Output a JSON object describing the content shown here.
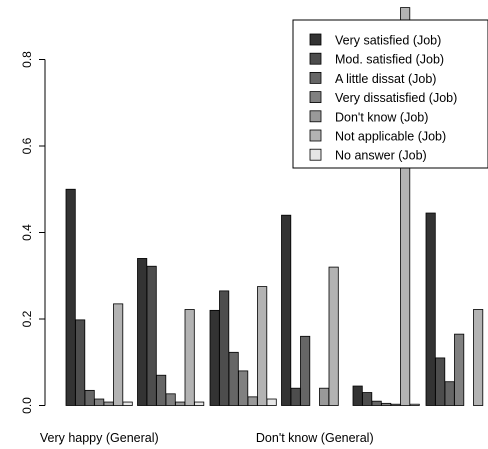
{
  "chart_data": {
    "type": "bar",
    "categories": [
      "Very happy (General)",
      "",
      "",
      "Don't know (General)",
      "",
      ""
    ],
    "series": [
      {
        "name": "Very satisfied (Job)",
        "color": "#333333",
        "values": [
          0.5,
          0.34,
          0.22,
          0.44,
          0.045,
          0.445
        ]
      },
      {
        "name": "Mod. satisfied (Job)",
        "color": "#4d4d4d",
        "values": [
          0.198,
          0.322,
          0.265,
          0.04,
          0.03,
          0.11
        ]
      },
      {
        "name": "A little dissat (Job)",
        "color": "#666666",
        "values": [
          0.035,
          0.07,
          0.123,
          0.16,
          0.01,
          0.055
        ]
      },
      {
        "name": "Very dissatisfied (Job)",
        "color": "#808080",
        "values": [
          0.015,
          0.027,
          0.08,
          0.0,
          0.005,
          0.165
        ]
      },
      {
        "name": "Don't know (Job)",
        "color": "#999999",
        "values": [
          0.008,
          0.008,
          0.02,
          0.04,
          0.003,
          0.0
        ]
      },
      {
        "name": "Not applicable (Job)",
        "color": "#b3b3b3",
        "values": [
          0.235,
          0.222,
          0.275,
          0.32,
          0.92,
          0.222
        ]
      },
      {
        "name": "No answer (Job)",
        "color": "#e6e6e6",
        "values": [
          0.008,
          0.008,
          0.015,
          0.0,
          0.003,
          0.0
        ]
      }
    ],
    "yticks": [
      "0.0",
      "0.2",
      "0.4",
      "0.6",
      "0.8"
    ],
    "ylim": [
      0,
      0.92
    ],
    "legend_position": "top-right",
    "grid": false
  }
}
